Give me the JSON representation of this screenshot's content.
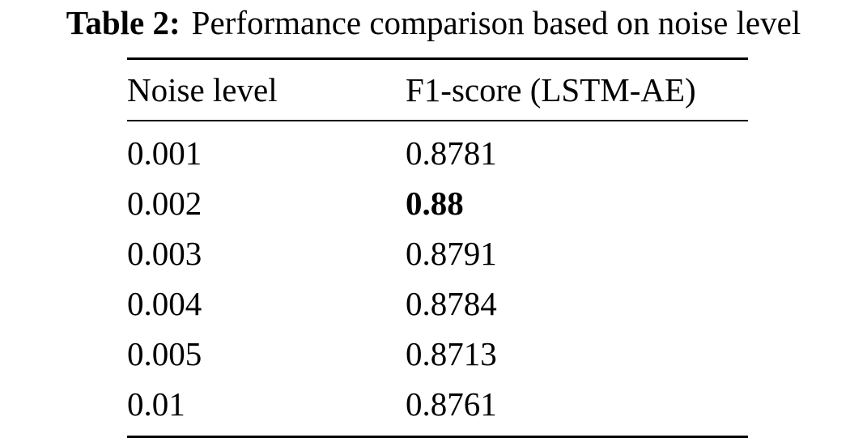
{
  "caption": {
    "label": "Table 2:",
    "text": "Performance comparison based on noise level"
  },
  "table": {
    "headers": [
      "Noise level",
      "F1-score (LSTM-AE)"
    ],
    "rows": [
      {
        "noise": "0.001",
        "f1": "0.8781",
        "bold": false
      },
      {
        "noise": "0.002",
        "f1": "0.88",
        "bold": true
      },
      {
        "noise": "0.003",
        "f1": "0.8791",
        "bold": false
      },
      {
        "noise": "0.004",
        "f1": "0.8784",
        "bold": false
      },
      {
        "noise": "0.005",
        "f1": "0.8713",
        "bold": false
      },
      {
        "noise": "0.01",
        "f1": "0.8761",
        "bold": false
      }
    ]
  }
}
